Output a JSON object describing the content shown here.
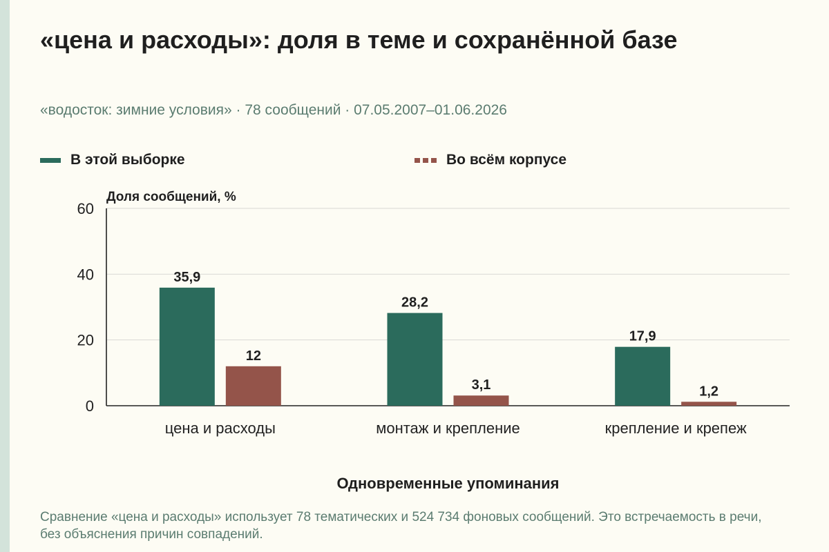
{
  "chart_data": {
    "type": "bar",
    "title": "«цена и расходы»: доля в теме и сохранённой базе",
    "subtitle": "«водосток: зимние условия» · 78 сообщений · 07.05.2007–01.06.2026",
    "ylabel": "Доля сообщений, %",
    "xlabel": "Одновременные упоминания",
    "ylim": [
      0,
      60
    ],
    "yticks": [
      "0",
      "20",
      "40",
      "60"
    ],
    "grid": true,
    "legend_position": "top",
    "categories": [
      "цена и расходы",
      "монтаж и крепление",
      "крепление и крепеж"
    ],
    "series": [
      {
        "name": "В этой выборке",
        "color": "#2b6b5c",
        "values": [
          35.9,
          28.2,
          17.9
        ],
        "labels": [
          "35,9",
          "28,2",
          "17,9"
        ]
      },
      {
        "name": "Во всём корпусе",
        "color": "#94544a",
        "values": [
          12,
          3.1,
          1.2
        ],
        "labels": [
          "12",
          "3,1",
          "1,2"
        ]
      }
    ]
  },
  "caption": "Сравнение «цена и расходы» использует 78 тематических и 524 734 фоновых сообщений. Это встречаемость в речи, без объяснения причин совпадений."
}
